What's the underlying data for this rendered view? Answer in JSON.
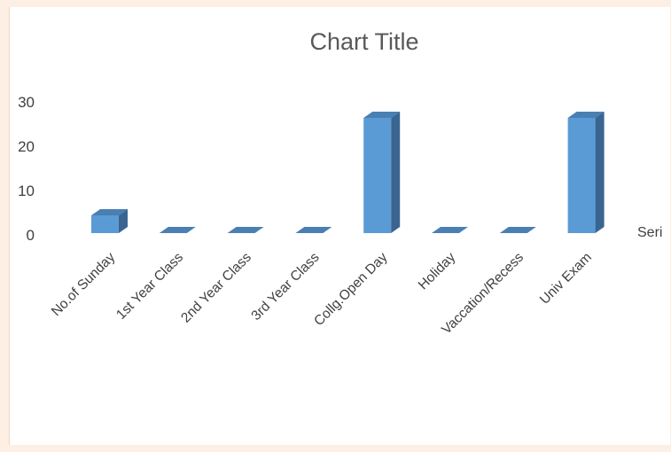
{
  "chart_data": {
    "type": "bar",
    "style": "3d-column",
    "title": "Chart Title",
    "categories": [
      "No.of Sunday",
      "1st Year Class",
      "2nd Year Class",
      "3rd Year Class",
      "Collg.Open Day",
      "Holiday",
      "Vaccation/Recess",
      "Univ Exam"
    ],
    "series": [
      {
        "name": "Seri",
        "values": [
          4,
          0,
          0,
          0,
          26,
          0,
          0,
          26
        ]
      }
    ],
    "yticks": [
      0,
      10,
      20,
      30
    ],
    "ylim": [
      0,
      30
    ],
    "grid": false,
    "legend": "right",
    "colors": {
      "bar_front": "#5b9bd5",
      "bar_top": "#4a7fb3",
      "bar_side": "#3a6591",
      "page_background": "#fdefe3"
    }
  }
}
